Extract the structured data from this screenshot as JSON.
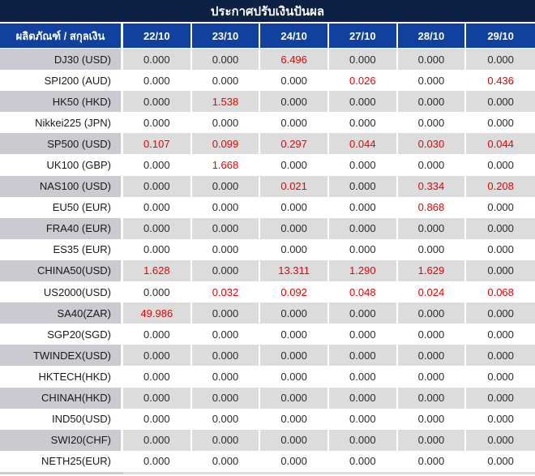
{
  "title": "ประกาศปรับเงินปันผล",
  "colors": {
    "title_bar_bg": "#0d2145",
    "header_bg": "#10419e",
    "alt_row_label_bg": "#cacad0",
    "alt_row_value_bg": "#dcdcdc",
    "value_text": "#2b2b2b",
    "highlight_red": "#ee0000"
  },
  "chart_data": {
    "type": "table",
    "title": "ประกาศปรับเงินปันผล",
    "columns": [
      "ผลิตภัณฑ์ / สกุลเงิน",
      "22/10",
      "23/10",
      "24/10",
      "27/10",
      "28/10",
      "29/10"
    ],
    "rows": [
      {
        "label": "DJ30 (USD)",
        "values": [
          "0.000",
          "0.000",
          "6.496",
          "0.000",
          "0.000",
          "0.000"
        ],
        "red": [
          false,
          false,
          true,
          false,
          false,
          false
        ]
      },
      {
        "label": "SPI200 (AUD)",
        "values": [
          "0.000",
          "0.000",
          "0.000",
          "0.026",
          "0.000",
          "0.436"
        ],
        "red": [
          false,
          false,
          false,
          true,
          false,
          true
        ]
      },
      {
        "label": "HK50 (HKD)",
        "values": [
          "0.000",
          "1.538",
          "0.000",
          "0.000",
          "0.000",
          "0.000"
        ],
        "red": [
          false,
          true,
          false,
          false,
          false,
          false
        ]
      },
      {
        "label": "Nikkei225 (JPN)",
        "values": [
          "0.000",
          "0.000",
          "0.000",
          "0.000",
          "0.000",
          "0.000"
        ],
        "red": [
          false,
          false,
          false,
          false,
          false,
          false
        ]
      },
      {
        "label": "SP500 (USD)",
        "values": [
          "0.107",
          "0.099",
          "0.297",
          "0.044",
          "0.030",
          "0.044"
        ],
        "red": [
          true,
          true,
          true,
          true,
          true,
          true
        ]
      },
      {
        "label": "UK100 (GBP)",
        "values": [
          "0.000",
          "1.668",
          "0.000",
          "0.000",
          "0.000",
          "0.000"
        ],
        "red": [
          false,
          true,
          false,
          false,
          false,
          false
        ]
      },
      {
        "label": "NAS100 (USD)",
        "values": [
          "0.000",
          "0.000",
          "0.021",
          "0.000",
          "0.334",
          "0.208"
        ],
        "red": [
          false,
          false,
          true,
          false,
          true,
          true
        ]
      },
      {
        "label": "EU50 (EUR)",
        "values": [
          "0.000",
          "0.000",
          "0.000",
          "0.000",
          "0.868",
          "0.000"
        ],
        "red": [
          false,
          false,
          false,
          false,
          true,
          false
        ]
      },
      {
        "label": "FRA40 (EUR)",
        "values": [
          "0.000",
          "0.000",
          "0.000",
          "0.000",
          "0.000",
          "0.000"
        ],
        "red": [
          false,
          false,
          false,
          false,
          false,
          false
        ]
      },
      {
        "label": "ES35 (EUR)",
        "values": [
          "0.000",
          "0.000",
          "0.000",
          "0.000",
          "0.000",
          "0.000"
        ],
        "red": [
          false,
          false,
          false,
          false,
          false,
          false
        ]
      },
      {
        "label": "CHINA50(USD)",
        "values": [
          "1.628",
          "0.000",
          "13.311",
          "1.290",
          "1.629",
          "0.000"
        ],
        "red": [
          true,
          false,
          true,
          true,
          true,
          false
        ]
      },
      {
        "label": "US2000(USD)",
        "values": [
          "0.000",
          "0.032",
          "0.092",
          "0.048",
          "0.024",
          "0.068"
        ],
        "red": [
          false,
          true,
          true,
          true,
          true,
          true
        ]
      },
      {
        "label": "SA40(ZAR)",
        "values": [
          "49.986",
          "0.000",
          "0.000",
          "0.000",
          "0.000",
          "0.000"
        ],
        "red": [
          true,
          false,
          false,
          false,
          false,
          false
        ]
      },
      {
        "label": "SGP20(SGD)",
        "values": [
          "0.000",
          "0.000",
          "0.000",
          "0.000",
          "0.000",
          "0.000"
        ],
        "red": [
          false,
          false,
          false,
          false,
          false,
          false
        ]
      },
      {
        "label": "TWINDEX(USD)",
        "values": [
          "0.000",
          "0.000",
          "0.000",
          "0.000",
          "0.000",
          "0.000"
        ],
        "red": [
          false,
          false,
          false,
          false,
          false,
          false
        ]
      },
      {
        "label": "HKTECH(HKD)",
        "values": [
          "0.000",
          "0.000",
          "0.000",
          "0.000",
          "0.000",
          "0.000"
        ],
        "red": [
          false,
          false,
          false,
          false,
          false,
          false
        ]
      },
      {
        "label": "CHINAH(HKD)",
        "values": [
          "0.000",
          "0.000",
          "0.000",
          "0.000",
          "0.000",
          "0.000"
        ],
        "red": [
          false,
          false,
          false,
          false,
          false,
          false
        ]
      },
      {
        "label": "IND50(USD)",
        "values": [
          "0.000",
          "0.000",
          "0.000",
          "0.000",
          "0.000",
          "0.000"
        ],
        "red": [
          false,
          false,
          false,
          false,
          false,
          false
        ]
      },
      {
        "label": "SWI20(CHF)",
        "values": [
          "0.000",
          "0.000",
          "0.000",
          "0.000",
          "0.000",
          "0.000"
        ],
        "red": [
          false,
          false,
          false,
          false,
          false,
          false
        ]
      },
      {
        "label": "NETH25(EUR)",
        "values": [
          "0.000",
          "0.000",
          "0.000",
          "0.000",
          "0.000",
          "0.000"
        ],
        "red": [
          false,
          false,
          false,
          false,
          false,
          false
        ]
      }
    ]
  }
}
